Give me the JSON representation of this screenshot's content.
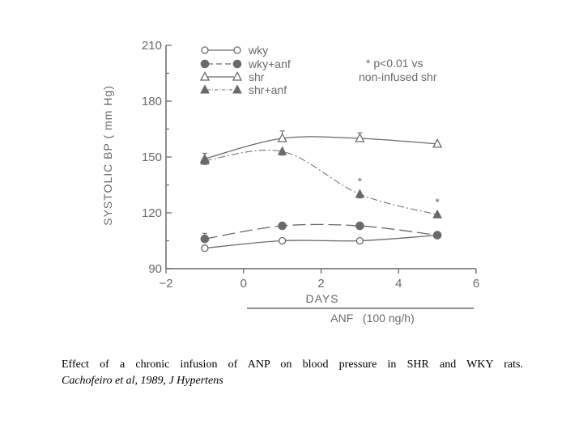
{
  "chart_data": {
    "type": "line",
    "title": "",
    "xlabel": "DAYS",
    "ylabel": "SYSTOLIC BP ( mm Hg)",
    "xlim": [
      -2,
      6
    ],
    "ylim": [
      90,
      210
    ],
    "xticks": [
      -2,
      0,
      2,
      4,
      6
    ],
    "xtick_labels": [
      "−2",
      "0",
      "2",
      "4",
      "6"
    ],
    "yticks": [
      90,
      120,
      150,
      180,
      210
    ],
    "ytick_labels": [
      "90",
      "120",
      "150",
      "180",
      "210"
    ],
    "grid": false,
    "legend_position": "top-left",
    "treatment_bar_label": "ANF   (100 ng/h)",
    "significance_note": [
      "* p<0.01 vs",
      "non-infused shr"
    ],
    "significance_marker": "*",
    "series": [
      {
        "name": "wky",
        "marker": "open-circle",
        "line": "solid",
        "x": [
          -1,
          1,
          3,
          5
        ],
        "y": [
          101,
          105,
          105,
          108
        ],
        "err": [
          0,
          0,
          0,
          0
        ]
      },
      {
        "name": "wky+anf",
        "marker": "filled-circle",
        "line": "long-dash",
        "x": [
          -1,
          1,
          3,
          5
        ],
        "y": [
          106,
          113,
          113,
          108
        ],
        "err": [
          3,
          0,
          0,
          0
        ]
      },
      {
        "name": "shr",
        "marker": "open-triangle",
        "line": "solid",
        "x": [
          -1,
          1,
          3,
          5
        ],
        "y": [
          149,
          160,
          160,
          157
        ],
        "err": [
          3,
          4,
          3,
          0
        ]
      },
      {
        "name": "shr+anf",
        "marker": "filled-triangle",
        "line": "dash-dot",
        "x": [
          -1,
          1,
          3,
          5
        ],
        "y": [
          148,
          153,
          130,
          119
        ],
        "err": [
          2,
          2,
          2,
          0
        ],
        "significant": [
          false,
          false,
          true,
          true
        ]
      }
    ]
  },
  "caption": {
    "line1": "Effect of a chronic infusion of ANP on blood pressure in SHR and WKY rats.",
    "line2": "Cachofeiro et al, 1989, J Hypertens"
  }
}
